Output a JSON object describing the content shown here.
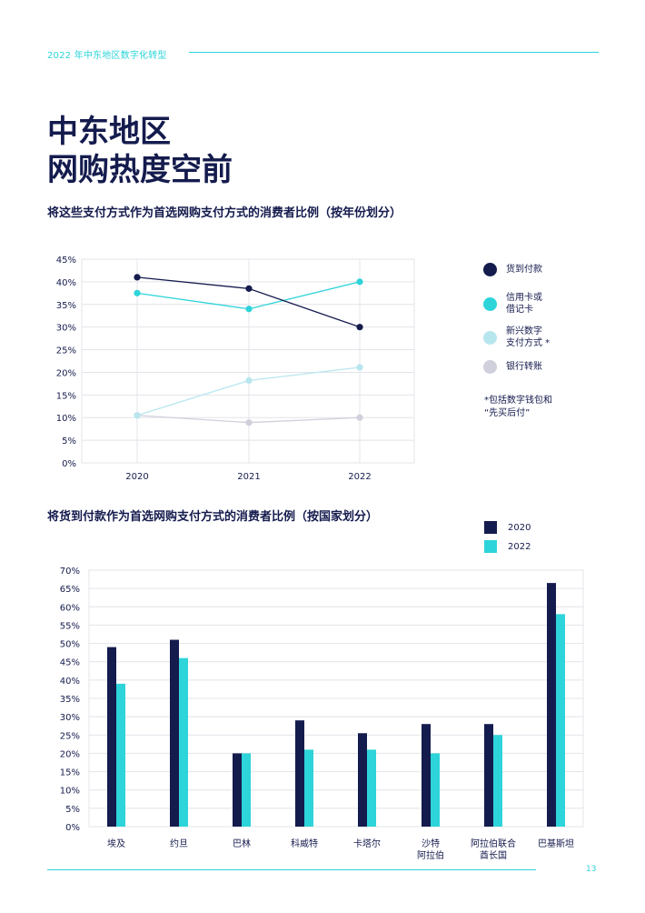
{
  "header": {
    "text": "2022 年中东地区数字化转型"
  },
  "title_lines": [
    "中东地区",
    "网购热度空前"
  ],
  "page_number": "13",
  "colors": {
    "navy": "#141b4d",
    "cyan": "#2dd4d9",
    "light_cyan": "#b8e6ef",
    "grey": "#cfd0dc",
    "accent": "#2dd4d9"
  },
  "chart_data": [
    {
      "type": "line",
      "title": "将这些支付方式作为首选网购支付方式的消费者比例（按年份划分）",
      "x": [
        "2020",
        "2021",
        "2022"
      ],
      "y_ticks": [
        "0%",
        "5%",
        "10%",
        "15%",
        "20%",
        "25%",
        "30%",
        "35%",
        "40%",
        "45%"
      ],
      "ylim": [
        0,
        45
      ],
      "grid": true,
      "legend_position": "right",
      "series": [
        {
          "name": "货到付款",
          "values": [
            41,
            38.5,
            30
          ],
          "color": "#141b4d"
        },
        {
          "name": "信用卡或\n借记卡",
          "values": [
            37.5,
            34,
            40
          ],
          "color": "#2dd4d9"
        },
        {
          "name": "新兴数字\n支付方式 *",
          "values": [
            10.5,
            18.2,
            21.1
          ],
          "color": "#b8e6ef"
        },
        {
          "name": "银行转账",
          "values": [
            10.5,
            8.9,
            10
          ],
          "color": "#cfd0dc"
        }
      ],
      "footnote": "*包括数字钱包和\n“先买后付”"
    },
    {
      "type": "bar",
      "title": "将货到付款作为首选网购支付方式的消费者比例（按国家划分）",
      "categories": [
        "埃及",
        "约旦",
        "巴林",
        "科威特",
        "卡塔尔",
        "沙特\n阿拉伯",
        "阿拉伯联合\n酋长国",
        "巴基斯坦"
      ],
      "y_ticks": [
        "0%",
        "5%",
        "10%",
        "15%",
        "20%",
        "25%",
        "30%",
        "35%",
        "40%",
        "45%",
        "50%",
        "55%",
        "60%",
        "65%",
        "70%"
      ],
      "ylim": [
        0,
        70
      ],
      "grid": true,
      "legend_position": "top-right",
      "series": [
        {
          "name": "2020",
          "values": [
            49,
            51,
            20,
            29,
            25.5,
            28,
            28,
            66.5
          ],
          "color": "#141b4d"
        },
        {
          "name": "2022",
          "values": [
            39,
            46,
            20,
            21,
            21,
            20,
            25,
            58
          ],
          "color": "#2dd4d9"
        }
      ]
    }
  ]
}
